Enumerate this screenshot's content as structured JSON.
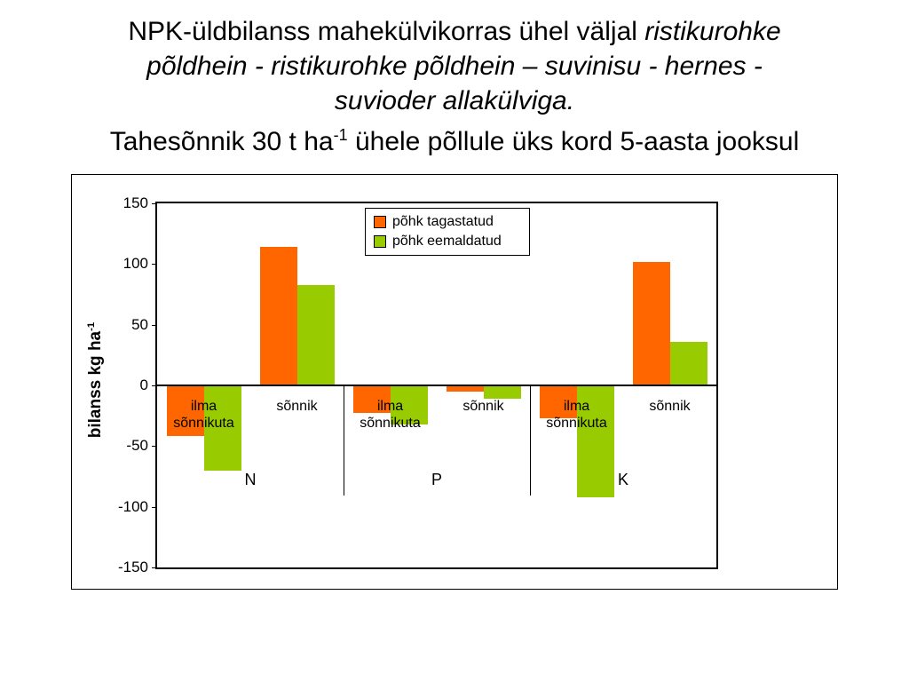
{
  "title": {
    "line1_normal": "NPK-üldbilanss mahekülvikorras ühel väljal ",
    "line1_italic": "ristikurohke",
    "line2_italic": "põldhein - ristikurohke põldhein – suvinisu - hernes -",
    "line3_italic": "suvioder allakülviga.",
    "line4_part1": "Tahesõnnik 30 t ha",
    "line4_sup": "-1",
    "line4_part2": " ühele põllule üks kord 5-aasta jooksul"
  },
  "chart_data": {
    "type": "bar",
    "title": "",
    "ylabel": "bilanss kg ha",
    "ylabel_superscript": "-1",
    "ylim": [
      -150,
      150
    ],
    "yticks": [
      150,
      100,
      50,
      0,
      -50,
      -100,
      -150
    ],
    "grid": false,
    "plot_background": "#FFFFFF",
    "legend_position": "top-center",
    "groups": [
      "N",
      "P",
      "K"
    ],
    "categories": [
      "ilma sõnnikuta",
      "sõnnik",
      "ilma sõnnikuta",
      "sõnnik",
      "ilma sõnnikuta",
      "sõnnik"
    ],
    "series": [
      {
        "name": "põhk tagastatud",
        "color": "#FF6600",
        "values": [
          -42,
          114,
          -23,
          -5,
          -27,
          102
        ]
      },
      {
        "name": "põhk eemaldatud",
        "color": "#99CC00",
        "values": [
          -70,
          83,
          -32,
          -11,
          -92,
          36
        ]
      }
    ]
  }
}
